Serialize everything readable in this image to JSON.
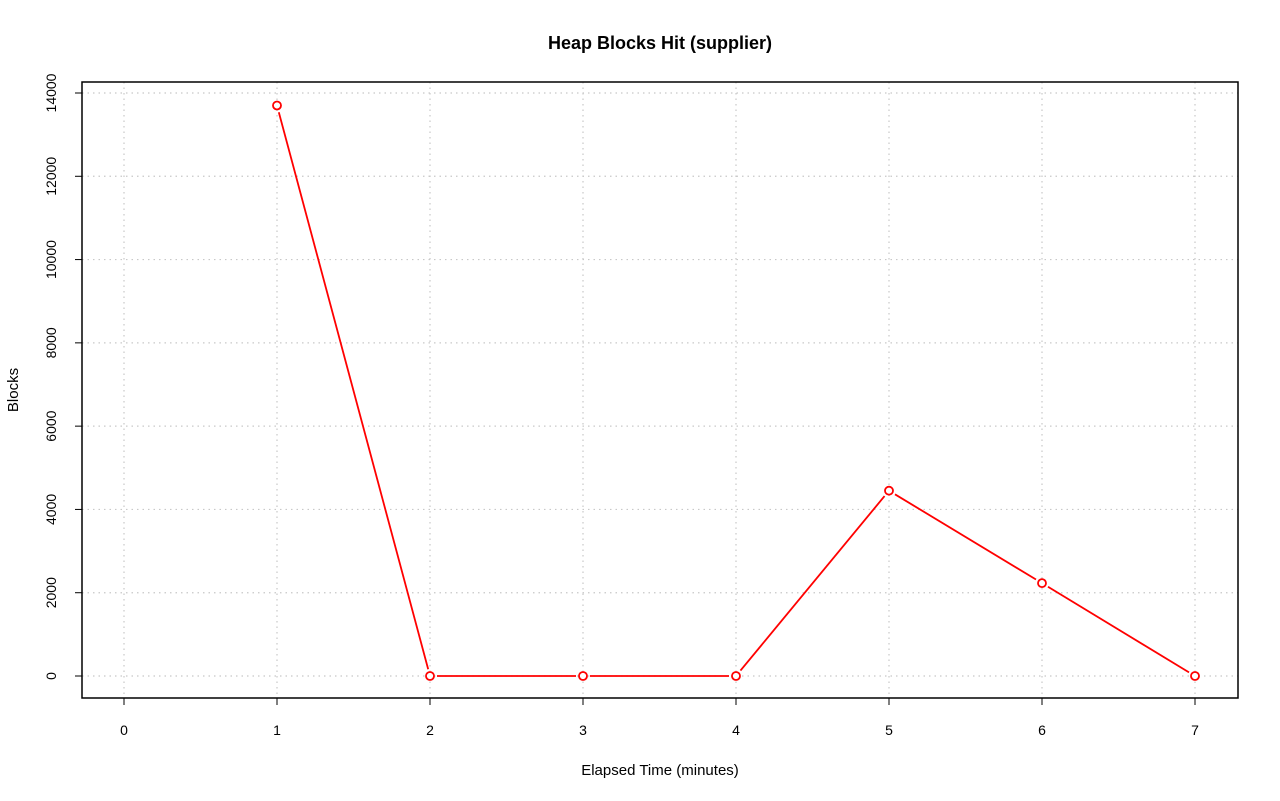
{
  "chart_data": {
    "type": "line",
    "title": "Heap Blocks Hit (supplier)",
    "xlabel": "Elapsed Time (minutes)",
    "ylabel": "Blocks",
    "xlim": [
      0,
      7
    ],
    "ylim": [
      0,
      14000
    ],
    "x_ticks": [
      "0",
      "1",
      "2",
      "3",
      "4",
      "5",
      "6",
      "7"
    ],
    "y_ticks": [
      "0",
      "2000",
      "4000",
      "6000",
      "8000",
      "10000",
      "12000",
      "14000"
    ],
    "grid": true,
    "series": [
      {
        "x": [
          1,
          2,
          3,
          4,
          5,
          6,
          7
        ],
        "values": [
          13700,
          0,
          0,
          0,
          4450,
          2230,
          0
        ],
        "color": "#ff0000",
        "marker": "open-circle"
      }
    ]
  }
}
